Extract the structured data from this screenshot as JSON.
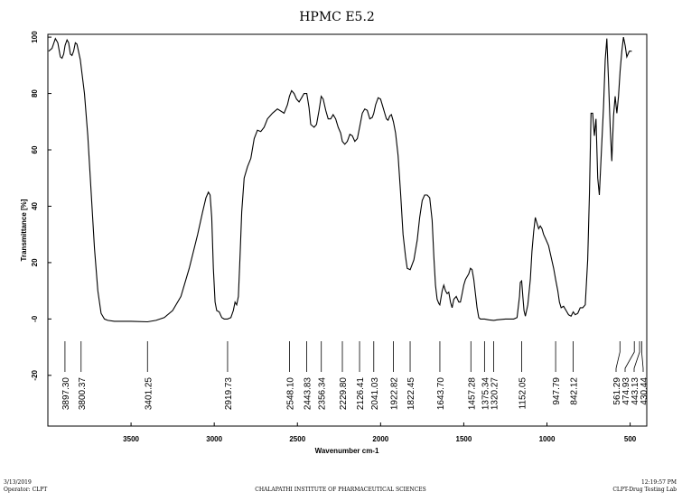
{
  "chart_data": {
    "type": "line",
    "title": "HPMC E5.2",
    "xlabel": "Wavenumber cm-1",
    "ylabel": "Transmittance [%]",
    "xlim": [
      4000,
      400
    ],
    "x_reversed": true,
    "ylim": [
      -38,
      101
    ],
    "x_ticks": [
      "3500",
      "3000",
      "2500",
      "2000",
      "1500",
      "1000",
      "500"
    ],
    "x_tick_values": [
      3500,
      3000,
      2500,
      2000,
      1500,
      1000,
      500
    ],
    "y_ticks": [
      "100",
      "80",
      "60",
      "40",
      "20",
      "-0",
      "-20"
    ],
    "y_tick_values": [
      100,
      80,
      60,
      40,
      20,
      0,
      -20
    ],
    "grid": false,
    "series": [
      {
        "color": "#000000",
        "points": [
          [
            3995,
            95
          ],
          [
            3975,
            96
          ],
          [
            3955,
            99.5
          ],
          [
            3940,
            98
          ],
          [
            3925,
            93
          ],
          [
            3915,
            92.5
          ],
          [
            3905,
            94
          ],
          [
            3897,
            97
          ],
          [
            3885,
            99
          ],
          [
            3875,
            98
          ],
          [
            3865,
            94
          ],
          [
            3855,
            93.5
          ],
          [
            3845,
            95
          ],
          [
            3835,
            98
          ],
          [
            3825,
            97.5
          ],
          [
            3805,
            92
          ],
          [
            3795,
            87
          ],
          [
            3780,
            80
          ],
          [
            3760,
            65
          ],
          [
            3740,
            45
          ],
          [
            3720,
            25
          ],
          [
            3700,
            10
          ],
          [
            3680,
            2
          ],
          [
            3660,
            0
          ],
          [
            3640,
            -0.5
          ],
          [
            3600,
            -0.8
          ],
          [
            3500,
            -0.8
          ],
          [
            3401,
            -1
          ],
          [
            3350,
            -0.5
          ],
          [
            3300,
            0.5
          ],
          [
            3250,
            3
          ],
          [
            3200,
            8
          ],
          [
            3150,
            18
          ],
          [
            3100,
            30
          ],
          [
            3070,
            38
          ],
          [
            3050,
            43
          ],
          [
            3035,
            45
          ],
          [
            3025,
            44
          ],
          [
            3015,
            36
          ],
          [
            3005,
            18
          ],
          [
            2995,
            6
          ],
          [
            2985,
            3
          ],
          [
            2970,
            2.5
          ],
          [
            2955,
            0.5
          ],
          [
            2940,
            0
          ],
          [
            2920,
            0
          ],
          [
            2900,
            0.5
          ],
          [
            2885,
            3
          ],
          [
            2875,
            6
          ],
          [
            2865,
            5
          ],
          [
            2855,
            8
          ],
          [
            2845,
            22
          ],
          [
            2835,
            38
          ],
          [
            2820,
            50
          ],
          [
            2800,
            54
          ],
          [
            2780,
            57
          ],
          [
            2760,
            64
          ],
          [
            2740,
            67
          ],
          [
            2720,
            66.5
          ],
          [
            2700,
            68
          ],
          [
            2680,
            71
          ],
          [
            2650,
            73
          ],
          [
            2620,
            74.5
          ],
          [
            2580,
            73
          ],
          [
            2560,
            76
          ],
          [
            2548,
            79
          ],
          [
            2535,
            81
          ],
          [
            2520,
            80
          ],
          [
            2505,
            78
          ],
          [
            2490,
            77
          ],
          [
            2475,
            78.5
          ],
          [
            2460,
            80
          ],
          [
            2444,
            80
          ],
          [
            2430,
            75
          ],
          [
            2420,
            69
          ],
          [
            2400,
            68
          ],
          [
            2385,
            69
          ],
          [
            2370,
            74
          ],
          [
            2357,
            79
          ],
          [
            2345,
            78
          ],
          [
            2330,
            74
          ],
          [
            2315,
            71
          ],
          [
            2300,
            71
          ],
          [
            2285,
            72.5
          ],
          [
            2270,
            71
          ],
          [
            2255,
            68
          ],
          [
            2240,
            66
          ],
          [
            2230,
            63
          ],
          [
            2215,
            62
          ],
          [
            2200,
            63
          ],
          [
            2185,
            65.5
          ],
          [
            2170,
            65
          ],
          [
            2155,
            63
          ],
          [
            2140,
            64
          ],
          [
            2126,
            68
          ],
          [
            2110,
            73
          ],
          [
            2095,
            74.5
          ],
          [
            2080,
            74
          ],
          [
            2065,
            71
          ],
          [
            2050,
            71.5
          ],
          [
            2041,
            73
          ],
          [
            2030,
            76
          ],
          [
            2015,
            78.5
          ],
          [
            2000,
            78
          ],
          [
            1985,
            75
          ],
          [
            1975,
            73
          ],
          [
            1965,
            71
          ],
          [
            1955,
            70.5
          ],
          [
            1945,
            72
          ],
          [
            1935,
            72.5
          ],
          [
            1923,
            70
          ],
          [
            1910,
            66
          ],
          [
            1895,
            58
          ],
          [
            1880,
            45
          ],
          [
            1865,
            30
          ],
          [
            1850,
            22
          ],
          [
            1840,
            18
          ],
          [
            1822,
            17.5
          ],
          [
            1800,
            21
          ],
          [
            1780,
            28
          ],
          [
            1765,
            36
          ],
          [
            1750,
            42
          ],
          [
            1735,
            44
          ],
          [
            1720,
            44
          ],
          [
            1705,
            43
          ],
          [
            1690,
            35
          ],
          [
            1680,
            22
          ],
          [
            1670,
            12
          ],
          [
            1660,
            7
          ],
          [
            1650,
            5.5
          ],
          [
            1644,
            5
          ],
          [
            1630,
            10
          ],
          [
            1620,
            12
          ],
          [
            1610,
            10
          ],
          [
            1600,
            9
          ],
          [
            1590,
            9.5
          ],
          [
            1580,
            6
          ],
          [
            1570,
            4
          ],
          [
            1560,
            7
          ],
          [
            1545,
            8
          ],
          [
            1530,
            6
          ],
          [
            1520,
            6
          ],
          [
            1510,
            9
          ],
          [
            1500,
            12
          ],
          [
            1490,
            14
          ],
          [
            1480,
            15
          ],
          [
            1470,
            16
          ],
          [
            1460,
            18
          ],
          [
            1450,
            17.5
          ],
          [
            1440,
            14
          ],
          [
            1430,
            9
          ],
          [
            1420,
            4
          ],
          [
            1410,
            0.5
          ],
          [
            1400,
            0
          ],
          [
            1375,
            0
          ],
          [
            1350,
            -0.3
          ],
          [
            1320,
            -0.5
          ],
          [
            1300,
            -0.3
          ],
          [
            1250,
            0
          ],
          [
            1200,
            0
          ],
          [
            1180,
            0.5
          ],
          [
            1175,
            3
          ],
          [
            1165,
            8
          ],
          [
            1160,
            13
          ],
          [
            1152,
            13.5
          ],
          [
            1145,
            8
          ],
          [
            1138,
            3
          ],
          [
            1130,
            1
          ],
          [
            1115,
            5
          ],
          [
            1100,
            14
          ],
          [
            1090,
            24
          ],
          [
            1080,
            31
          ],
          [
            1070,
            36
          ],
          [
            1065,
            35
          ],
          [
            1050,
            32
          ],
          [
            1040,
            33
          ],
          [
            1030,
            32
          ],
          [
            1020,
            30
          ],
          [
            1005,
            28
          ],
          [
            990,
            26
          ],
          [
            975,
            22
          ],
          [
            960,
            18
          ],
          [
            948,
            14
          ],
          [
            935,
            10
          ],
          [
            925,
            6
          ],
          [
            915,
            4
          ],
          [
            900,
            4.5
          ],
          [
            885,
            3
          ],
          [
            870,
            1.5
          ],
          [
            855,
            1
          ],
          [
            842,
            2.5
          ],
          [
            830,
            1.5
          ],
          [
            815,
            2
          ],
          [
            800,
            4
          ],
          [
            785,
            4
          ],
          [
            770,
            5
          ],
          [
            755,
            21
          ],
          [
            745,
            44
          ],
          [
            735,
            73
          ],
          [
            725,
            73
          ],
          [
            715,
            65
          ],
          [
            705,
            71
          ],
          [
            695,
            50
          ],
          [
            685,
            44
          ],
          [
            675,
            57
          ],
          [
            660,
            75
          ],
          [
            650,
            92
          ],
          [
            640,
            99.5
          ],
          [
            630,
            85
          ],
          [
            620,
            68
          ],
          [
            610,
            56
          ],
          [
            600,
            72
          ],
          [
            590,
            79
          ],
          [
            580,
            73
          ],
          [
            570,
            79
          ],
          [
            560,
            88
          ],
          [
            550,
            95
          ],
          [
            540,
            100
          ],
          [
            530,
            97
          ],
          [
            520,
            93
          ],
          [
            505,
            95
          ],
          [
            490,
            95
          ]
        ]
      }
    ],
    "peak_labels": [
      "3897.30",
      "3800.37",
      "3401.25",
      "2919.73",
      "2548.10",
      "2443.83",
      "2356.34",
      "2229.80",
      "2126.41",
      "2041.03",
      "1922.82",
      "1822.45",
      "1643.70",
      "1457.28",
      "1375.34",
      "1320.27",
      "1152.05",
      "947.79",
      "842.12",
      "561.29",
      "474.93",
      "443.13",
      "430.44"
    ],
    "peak_values": [
      3897.3,
      3800.37,
      3401.25,
      2919.73,
      2548.1,
      2443.83,
      2356.34,
      2229.8,
      2126.41,
      2041.03,
      1922.82,
      1822.45,
      1643.7,
      1457.28,
      1375.34,
      1320.27,
      1152.05,
      947.79,
      842.12,
      561.29,
      474.93,
      443.13,
      430.44
    ]
  },
  "footer": {
    "date": "3/13/2019",
    "operator": "Operator: CLPT",
    "institute": "CHALAPATHI INSTITUTE OF PHARMACEUTICAL SCIENCES",
    "time": "12:19:57 PM",
    "lab": "CLPT-Drug Testing Lab"
  }
}
